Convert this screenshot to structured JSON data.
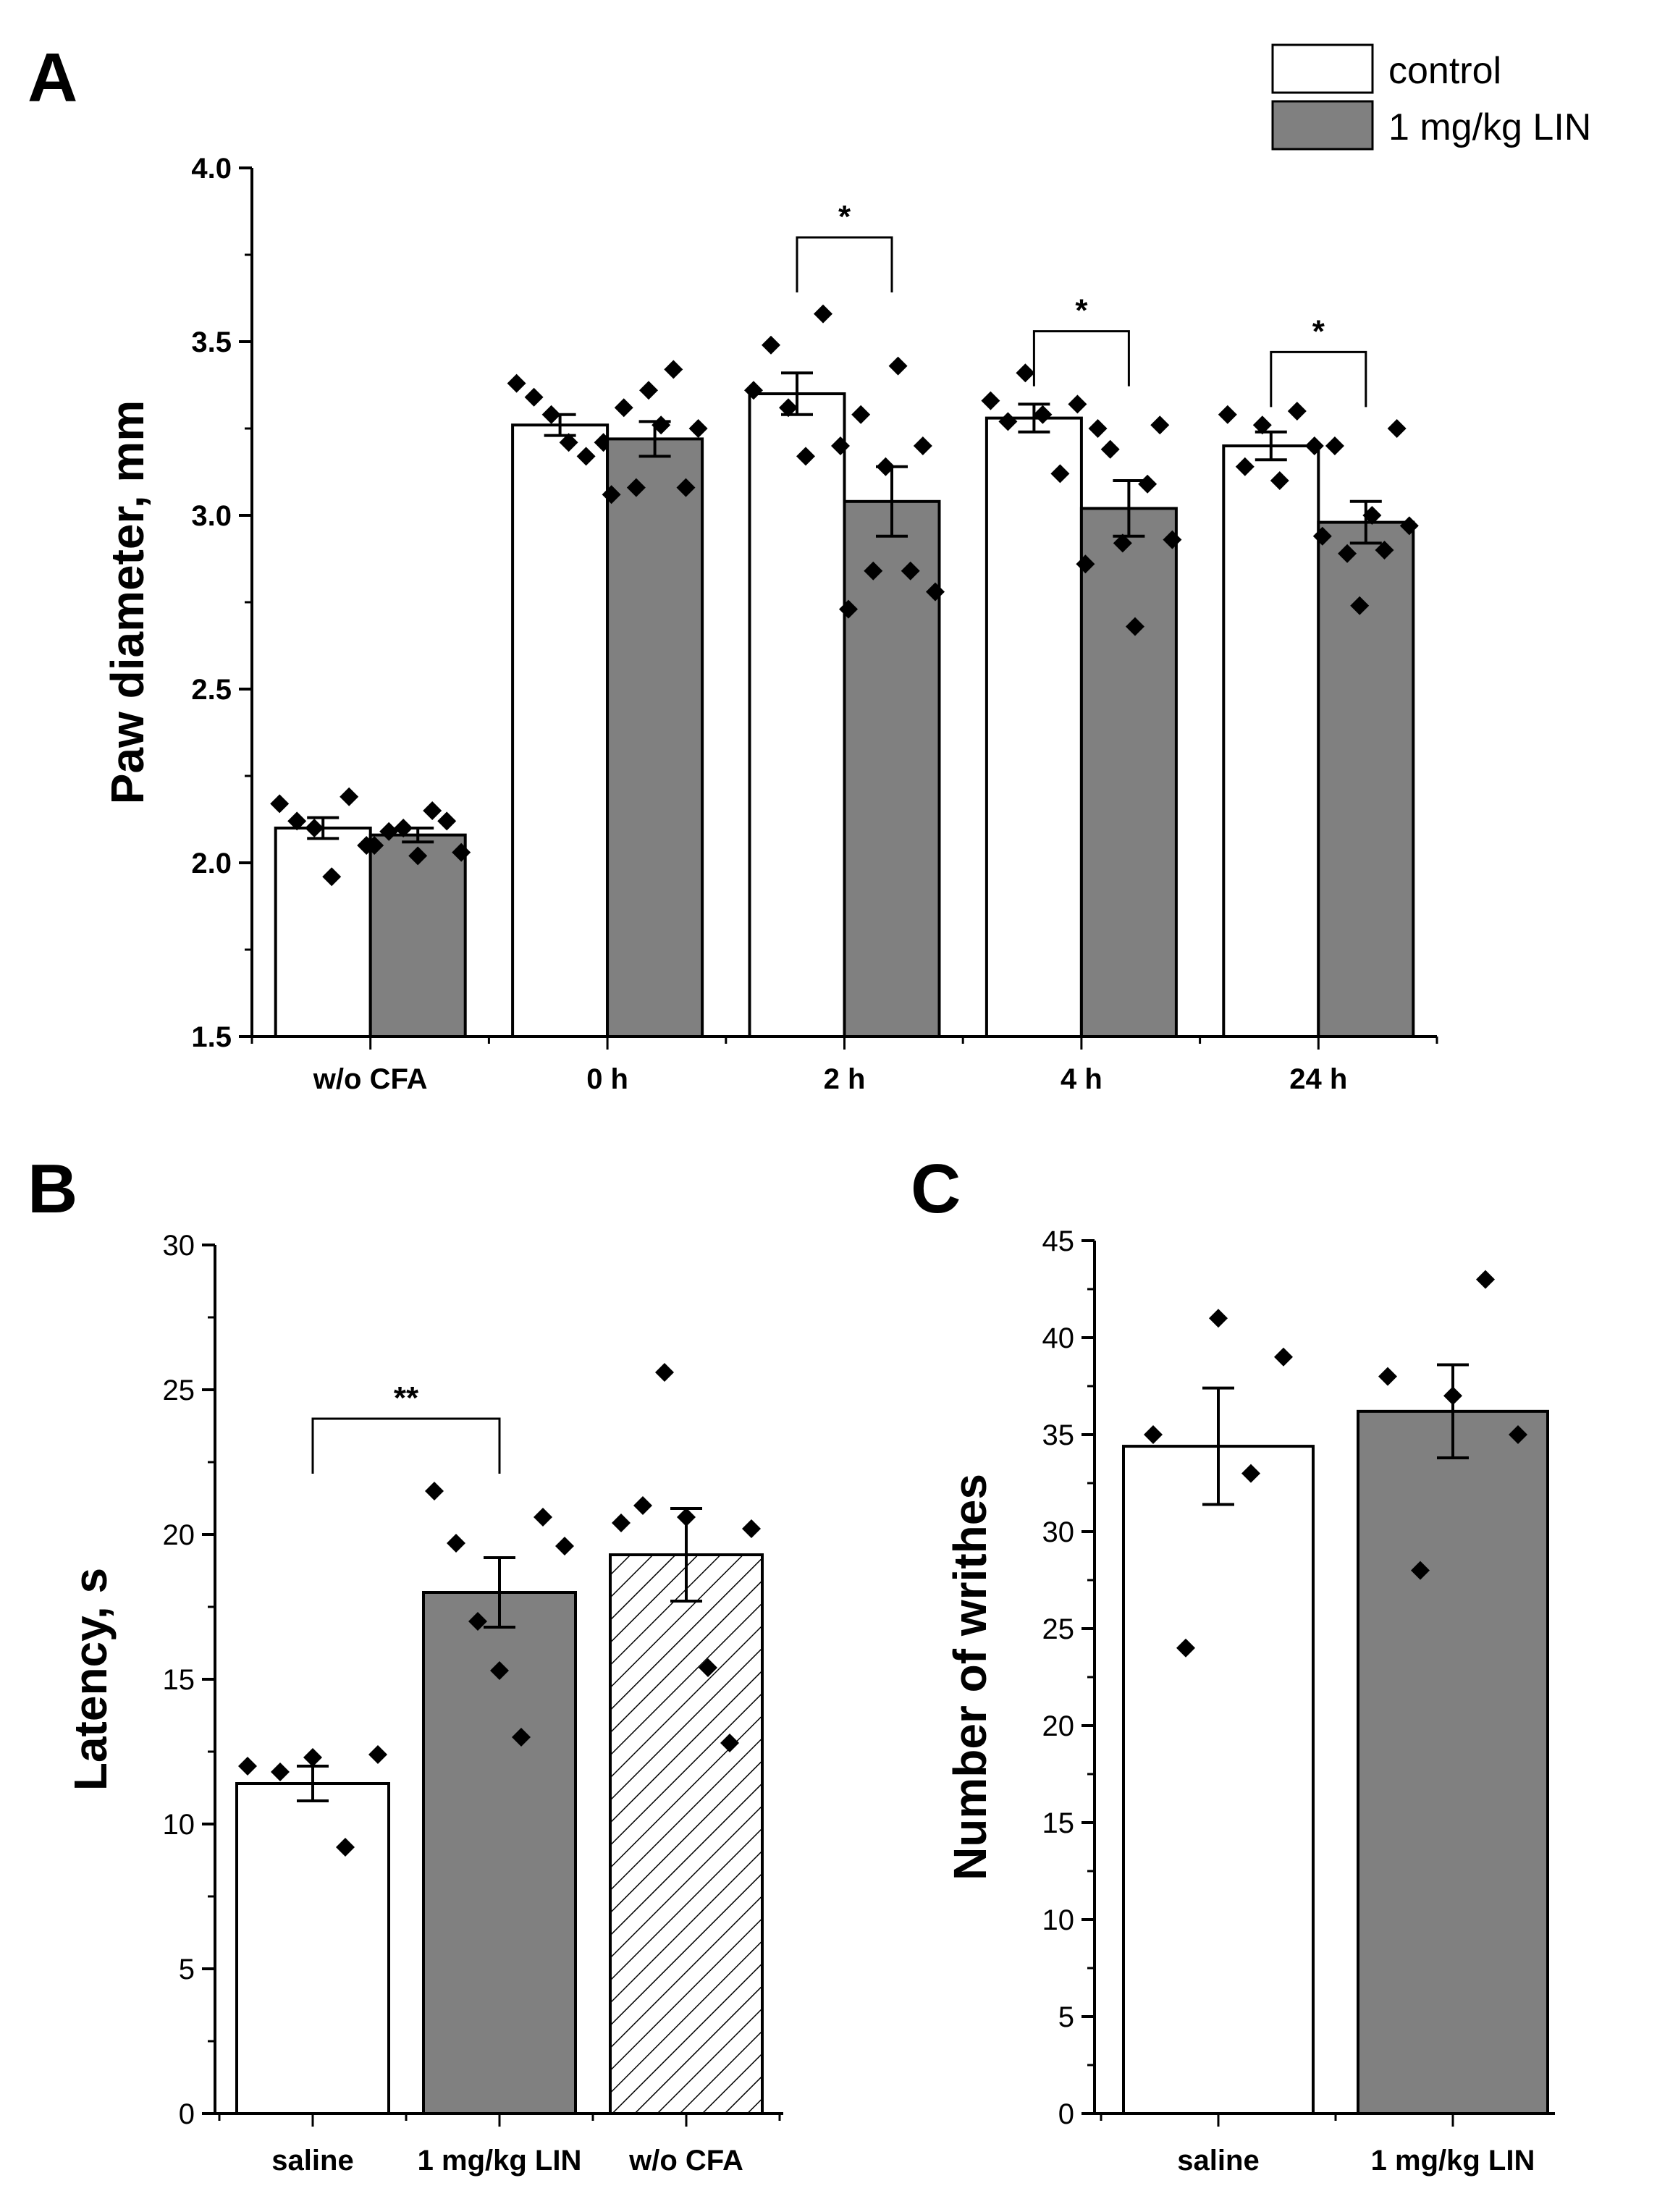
{
  "legend": [
    {
      "label": "control",
      "color": "#ffffff"
    },
    {
      "label": "1 mg/kg LIN",
      "color": "#808080"
    }
  ],
  "colors": {
    "control": "#ffffff",
    "treated": "#808080",
    "edge": "#000000"
  },
  "chart_data": [
    {
      "panel": "A",
      "type": "bar",
      "ylabel": "Paw diameter, mm",
      "ylim": [
        1.5,
        4.0
      ],
      "yticks": [
        "1.5",
        "2.0",
        "2.5",
        "3.0",
        "3.5",
        "4.0"
      ],
      "categories": [
        "w/o CFA",
        "0 h",
        "2 h",
        "4 h",
        "24 h"
      ],
      "series": [
        {
          "name": "control",
          "values": [
            2.1,
            3.26,
            3.35,
            3.28,
            3.2
          ],
          "errors": [
            0.03,
            0.03,
            0.06,
            0.04,
            0.04
          ],
          "points": [
            [
              2.17,
              2.12,
              2.1,
              1.96,
              2.19,
              2.05
            ],
            [
              3.38,
              3.34,
              3.29,
              3.21,
              3.17,
              3.21
            ],
            [
              3.36,
              3.49,
              3.31,
              3.17,
              3.58,
              3.2
            ],
            [
              3.33,
              3.27,
              3.41,
              3.29,
              3.12,
              3.32
            ],
            [
              3.29,
              3.14,
              3.26,
              3.1,
              3.3,
              3.2
            ]
          ]
        },
        {
          "name": "1 mg/kg LIN",
          "values": [
            2.08,
            3.22,
            3.04,
            3.02,
            2.98
          ],
          "errors": [
            0.02,
            0.05,
            0.1,
            0.08,
            0.06
          ],
          "points": [
            [
              2.05,
              2.09,
              2.1,
              2.02,
              2.15,
              2.12,
              2.03
            ],
            [
              3.06,
              3.31,
              3.08,
              3.36,
              3.26,
              3.42,
              3.08,
              3.25
            ],
            [
              2.73,
              3.29,
              2.84,
              3.14,
              3.43,
              2.84,
              3.2,
              2.78
            ],
            [
              2.86,
              3.25,
              3.19,
              2.92,
              2.68,
              3.09,
              3.26,
              2.93
            ],
            [
              2.94,
              3.2,
              2.89,
              2.74,
              3.0,
              2.9,
              3.25,
              2.97
            ]
          ]
        }
      ],
      "significance": [
        {
          "from": 2,
          "to": 2,
          "y": 3.8,
          "label": "*"
        },
        {
          "from": 3,
          "to": 3,
          "y": 3.53,
          "label": "*"
        },
        {
          "from": 4,
          "to": 4,
          "y": 3.47,
          "label": "*"
        }
      ]
    },
    {
      "panel": "B",
      "type": "bar",
      "ylabel": "Latency, s",
      "ylim": [
        0,
        30
      ],
      "yticks": [
        "0",
        "5",
        "10",
        "15",
        "20",
        "25",
        "30"
      ],
      "categories": [
        "saline",
        "1 mg/kg LIN",
        "w/o CFA"
      ],
      "values": [
        11.4,
        18.0,
        19.3
      ],
      "errors": [
        0.6,
        1.2,
        1.6
      ],
      "fills": [
        "#ffffff",
        "#808080",
        "hatch"
      ],
      "points": [
        [
          12.0,
          11.8,
          12.3,
          9.2,
          12.4
        ],
        [
          21.5,
          19.7,
          17.0,
          15.3,
          13.0,
          20.6,
          19.6
        ],
        [
          20.4,
          21.0,
          25.6,
          20.6,
          15.4,
          12.8,
          20.2
        ]
      ],
      "significance": [
        {
          "from": 0,
          "to": 1,
          "y": 24.0,
          "label": "**"
        }
      ]
    },
    {
      "panel": "C",
      "type": "bar",
      "ylabel": "Number of writhes",
      "ylim": [
        0,
        45
      ],
      "yticks": [
        "0",
        "5",
        "10",
        "15",
        "20",
        "25",
        "30",
        "35",
        "40",
        "45"
      ],
      "categories": [
        "saline",
        "1 mg/kg LIN"
      ],
      "values": [
        34.4,
        36.2
      ],
      "errors": [
        3.0,
        2.4
      ],
      "fills": [
        "#ffffff",
        "#808080"
      ],
      "points": [
        [
          35.0,
          24.0,
          41.0,
          33.0,
          39.0
        ],
        [
          38.0,
          28.0,
          37.0,
          43.0,
          35.0
        ]
      ]
    }
  ]
}
